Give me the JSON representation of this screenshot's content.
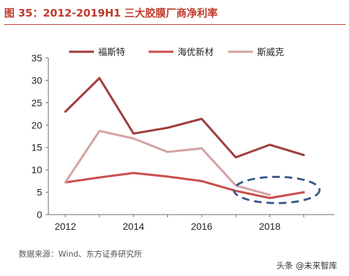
{
  "header": {
    "title": "图 35：2012-2019H1 三大胶膜厂商净利率"
  },
  "footer": {
    "source": "数据来源：Wind、东方证券研究所",
    "watermark": "头条 @未来智库"
  },
  "chart_data": {
    "type": "line",
    "title": "图 35：2012-2019H1 三大胶膜厂商净利率",
    "xlabel": "",
    "ylabel": "",
    "x": [
      2012,
      2013,
      2014,
      2015,
      2016,
      2017,
      2018,
      2019
    ],
    "xticks": [
      2012,
      2014,
      2016,
      2018
    ],
    "xlim": [
      2011.5,
      2019.9
    ],
    "ylim": [
      0,
      35
    ],
    "yticks": [
      0,
      5,
      10,
      15,
      20,
      25,
      30,
      35
    ],
    "legend_position": "top",
    "series": [
      {
        "name": "福斯特",
        "color": "#a04040",
        "values": [
          23.0,
          30.5,
          18.1,
          19.4,
          21.4,
          12.8,
          15.6,
          13.3
        ]
      },
      {
        "name": "海优新材",
        "color": "#c9504d",
        "values": [
          7.2,
          8.3,
          9.3,
          8.5,
          7.5,
          5.3,
          3.7,
          5.0
        ]
      },
      {
        "name": "斯威克",
        "color": "#d4a4a4",
        "values": [
          7.2,
          18.7,
          17.0,
          14.0,
          14.8,
          6.5,
          4.4,
          null
        ]
      }
    ],
    "annotation": {
      "shape": "dashed-ellipse",
      "color": "#3a5a8c",
      "center": [
        2018,
        5.5
      ]
    }
  }
}
